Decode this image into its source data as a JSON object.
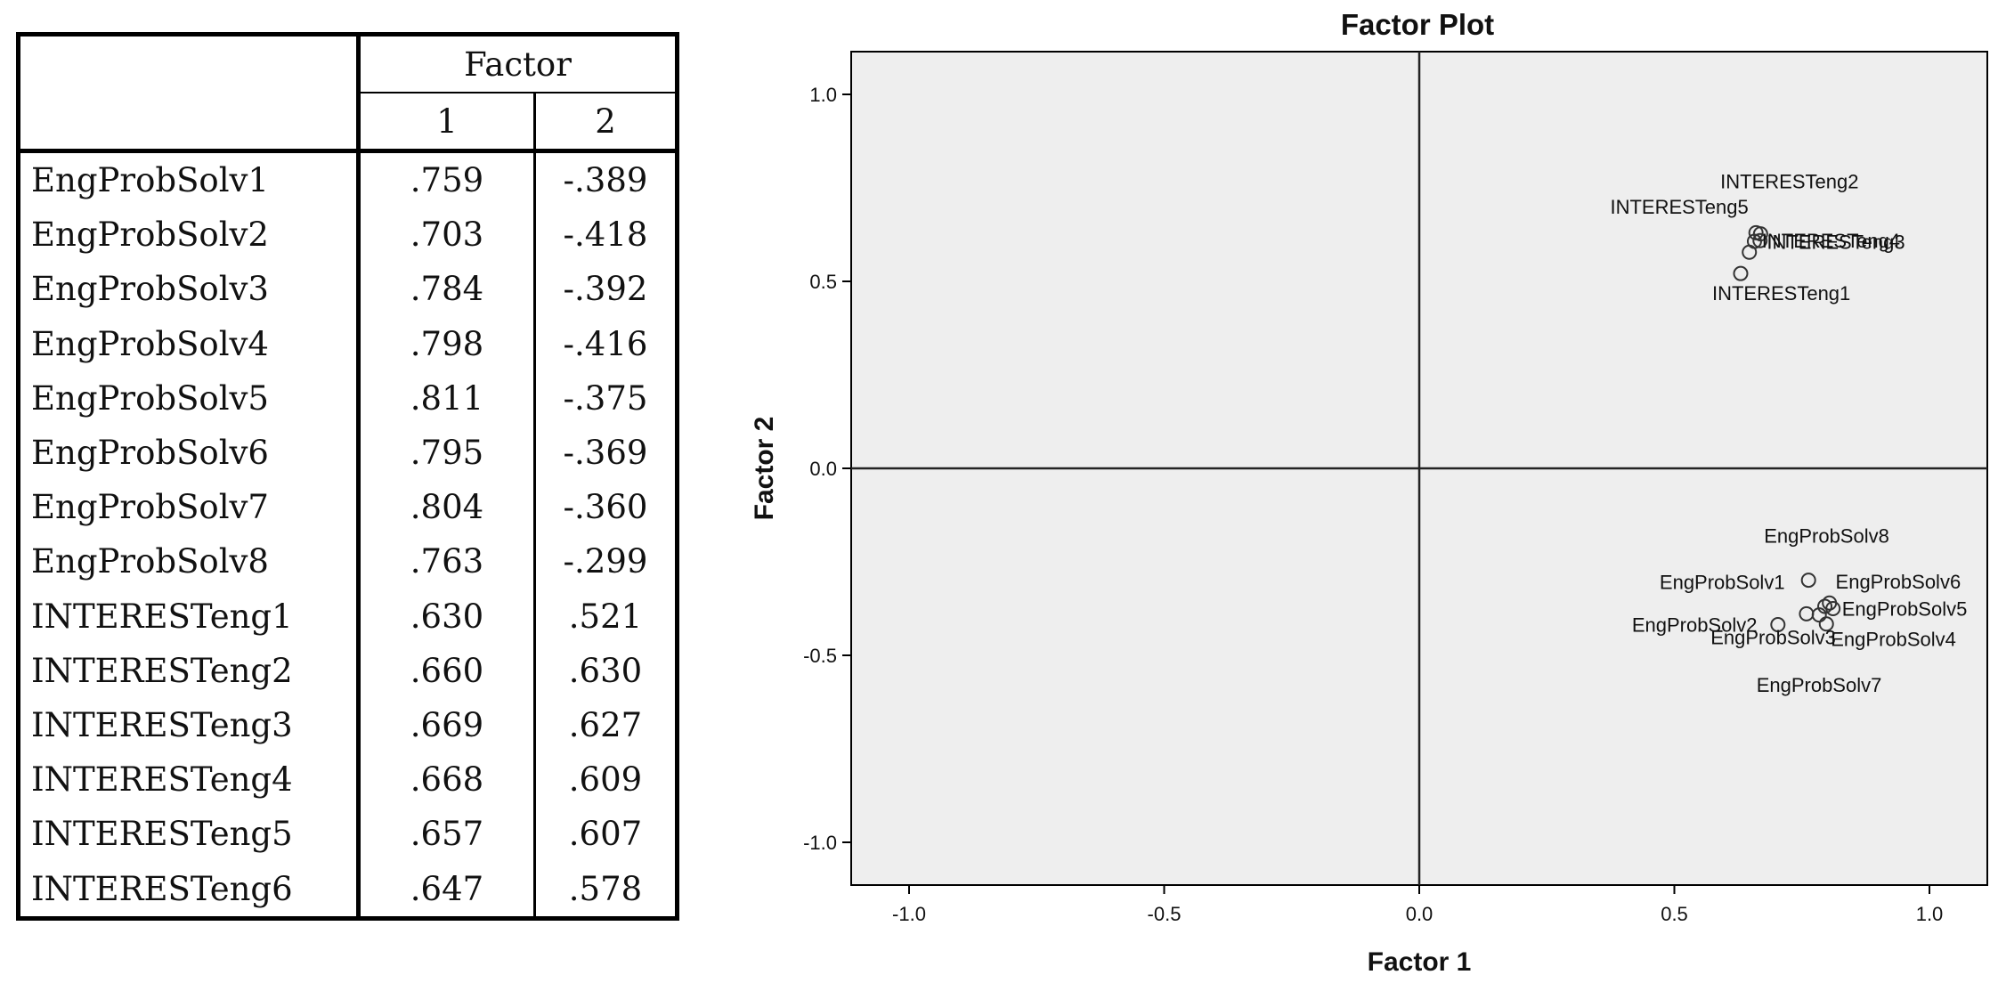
{
  "table": {
    "header_group": "Factor",
    "columns": [
      "1",
      "2"
    ],
    "rows": [
      {
        "name": "EngProbSolv1",
        "f1": ".759",
        "f2": "-.389"
      },
      {
        "name": "EngProbSolv2",
        "f1": ".703",
        "f2": "-.418"
      },
      {
        "name": "EngProbSolv3",
        "f1": ".784",
        "f2": "-.392"
      },
      {
        "name": "EngProbSolv4",
        "f1": ".798",
        "f2": "-.416"
      },
      {
        "name": "EngProbSolv5",
        "f1": ".811",
        "f2": "-.375"
      },
      {
        "name": "EngProbSolv6",
        "f1": ".795",
        "f2": "-.369"
      },
      {
        "name": "EngProbSolv7",
        "f1": ".804",
        "f2": "-.360"
      },
      {
        "name": "EngProbSolv8",
        "f1": ".763",
        "f2": "-.299"
      },
      {
        "name": "INTERESTeng1",
        "f1": ".630",
        "f2": ".521"
      },
      {
        "name": "INTERESTeng2",
        "f1": ".660",
        "f2": ".630"
      },
      {
        "name": "INTERESTeng3",
        "f1": ".669",
        "f2": ".627"
      },
      {
        "name": "INTERESTeng4",
        "f1": ".668",
        "f2": ".609"
      },
      {
        "name": "INTERESTeng5",
        "f1": ".657",
        "f2": ".607"
      },
      {
        "name": "INTERESTeng6",
        "f1": ".647",
        "f2": ".578"
      }
    ]
  },
  "chart_data": {
    "type": "scatter",
    "title": "Factor Plot",
    "xlabel": "Factor 1",
    "ylabel": "Factor 2",
    "xlim": [
      -1.1,
      1.1
    ],
    "ylim": [
      -1.1,
      1.1
    ],
    "xticks": [
      "-1.0",
      "-0.5",
      "0.0",
      "0.5",
      "1.0"
    ],
    "yticks": [
      "1.0",
      "0.5",
      "0.0",
      "-0.5",
      "-1.0"
    ],
    "xtick_values": [
      -1.0,
      -0.5,
      0.0,
      0.5,
      1.0
    ],
    "ytick_values": [
      1.0,
      0.5,
      0.0,
      -0.5,
      -1.0
    ],
    "background": "#eeeeee",
    "points": [
      {
        "label": "EngProbSolv1",
        "x": 0.759,
        "y": -0.389
      },
      {
        "label": "EngProbSolv2",
        "x": 0.703,
        "y": -0.418
      },
      {
        "label": "EngProbSolv3",
        "x": 0.784,
        "y": -0.392
      },
      {
        "label": "EngProbSolv4",
        "x": 0.798,
        "y": -0.416
      },
      {
        "label": "EngProbSolv5",
        "x": 0.811,
        "y": -0.375
      },
      {
        "label": "EngProbSolv6",
        "x": 0.795,
        "y": -0.369
      },
      {
        "label": "EngProbSolv7",
        "x": 0.804,
        "y": -0.36
      },
      {
        "label": "EngProbSolv8",
        "x": 0.763,
        "y": -0.299
      },
      {
        "label": "INTERESTeng1",
        "x": 0.63,
        "y": 0.521
      },
      {
        "label": "INTERESTeng2",
        "x": 0.66,
        "y": 0.63
      },
      {
        "label": "INTERESTeng3",
        "x": 0.669,
        "y": 0.627
      },
      {
        "label": "INTERESTeng4",
        "x": 0.668,
        "y": 0.609
      },
      {
        "label": "INTERESTeng5",
        "x": 0.657,
        "y": 0.607
      },
      {
        "label": "INTERESTeng6",
        "x": 0.647,
        "y": 0.578
      }
    ]
  }
}
